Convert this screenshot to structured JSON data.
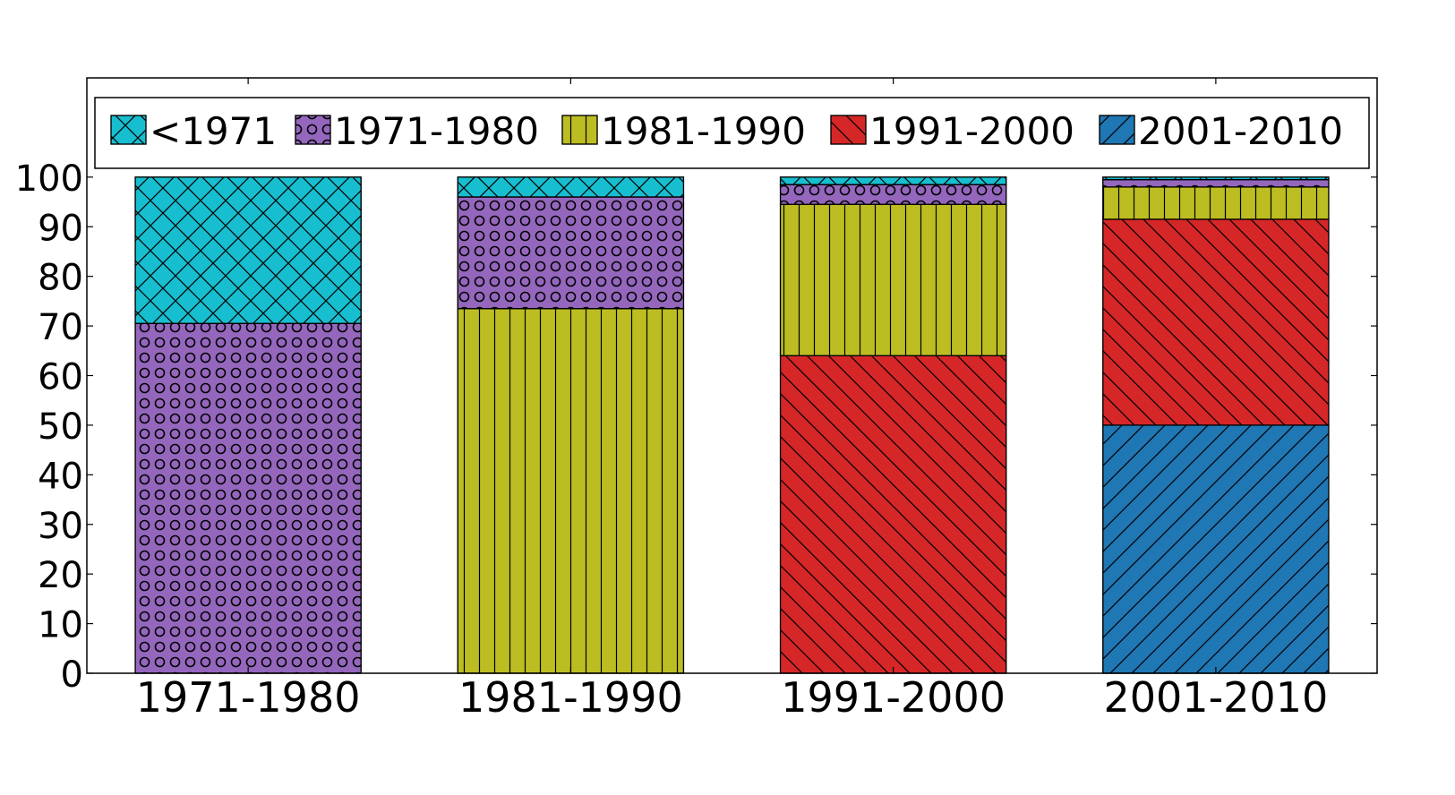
{
  "chart_data": {
    "type": "bar",
    "stacked": true,
    "categories": [
      "1971-1980",
      "1981-1990",
      "1991-2000",
      "2001-2010"
    ],
    "series": [
      {
        "name": "2001-2010",
        "color": "#1f77b4",
        "pattern": "diag-up",
        "values": [
          0,
          0,
          0,
          50
        ]
      },
      {
        "name": "1991-2000",
        "color": "#d62728",
        "pattern": "diag-down",
        "values": [
          0,
          0,
          64,
          41.5
        ]
      },
      {
        "name": "1981-1990",
        "color": "#bcbd22",
        "pattern": "vertical",
        "values": [
          0,
          73.5,
          30.5,
          6.5
        ]
      },
      {
        "name": "1971-1980",
        "color": "#9467bd",
        "pattern": "circles",
        "values": [
          70.5,
          22.5,
          4,
          1.5
        ]
      },
      {
        "name": "<1971",
        "color": "#17becf",
        "pattern": "cross",
        "values": [
          29.5,
          4,
          1.5,
          0.5
        ]
      }
    ],
    "legend": {
      "entries": [
        "<1971",
        "1971-1980",
        "1981-1990",
        "1991-2000",
        "2001-2010"
      ],
      "placement": "top"
    },
    "yticks": [
      "0",
      "10",
      "20",
      "30",
      "40",
      "50",
      "60",
      "70",
      "80",
      "90",
      "100"
    ],
    "ylim": [
      0,
      120
    ],
    "title": "",
    "xlabel": "",
    "ylabel": "",
    "grid": false
  }
}
